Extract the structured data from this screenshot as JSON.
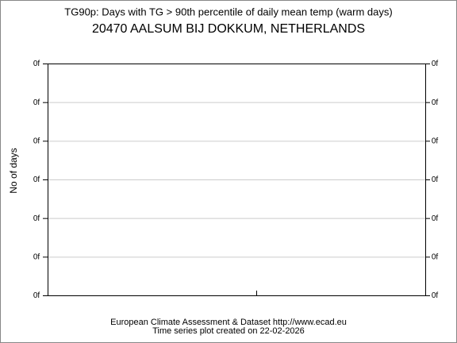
{
  "chart_data": {
    "type": "line",
    "title": "TG90p: Days with TG > 90th percentile of daily mean temp (warm days)",
    "subtitle": "20470 AALSUM BIJ DOKKUM, NETHERLANDS",
    "ylabel": "No of days",
    "ytick_labels": [
      "0f",
      "0f",
      "0f",
      "0f",
      "0f",
      "0f",
      "0f"
    ],
    "grid": true,
    "footer": [
      "European Climate Assessment & Dataset  http://www.ecad.eu",
      "Time series plot created on 22-02-2026"
    ]
  }
}
